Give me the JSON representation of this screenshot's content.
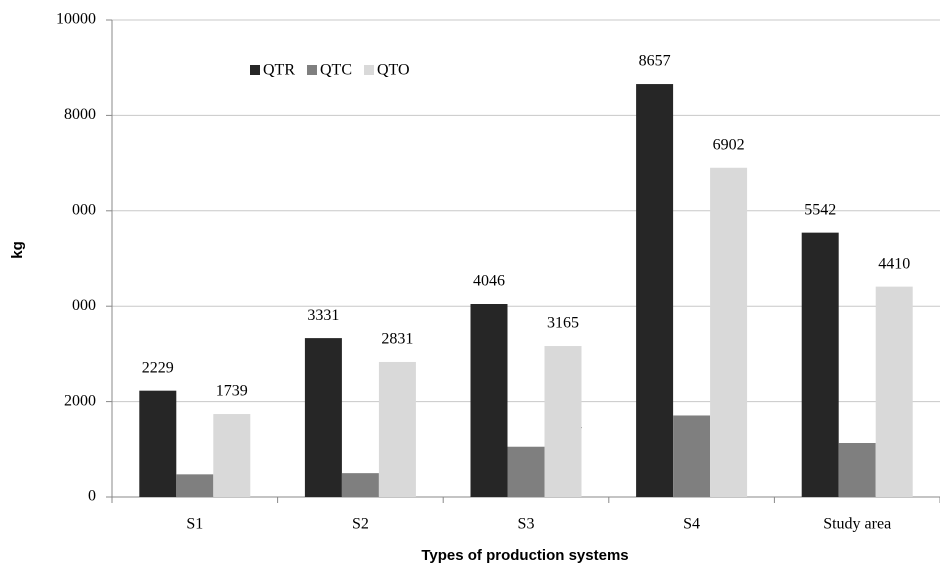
{
  "chart_data": {
    "type": "bar",
    "x_label": "Types of production systems",
    "y_label": "kg",
    "categories": [
      "S1",
      "S2",
      "S3",
      "S4",
      "Study area"
    ],
    "series": [
      {
        "name": "QTR",
        "color": "#262626",
        "values": [
          2229,
          3331,
          4046,
          8657,
          5542
        ]
      },
      {
        "name": "QTC",
        "color": "#7f7f7f",
        "values": [
          475,
          500,
          1054,
          1709,
          1132
        ]
      },
      {
        "name": "QTO",
        "color": "#d9d9d9",
        "values": [
          1739,
          2831,
          3165,
          6902,
          4410
        ]
      }
    ],
    "ylim": [
      0,
      10000
    ],
    "yticks": [
      0,
      2000,
      {
        "value": 4000,
        "label": "000"
      },
      {
        "value": 6000,
        "label": "000"
      },
      8000,
      10000
    ],
    "grid": true,
    "legend": "top-left"
  }
}
